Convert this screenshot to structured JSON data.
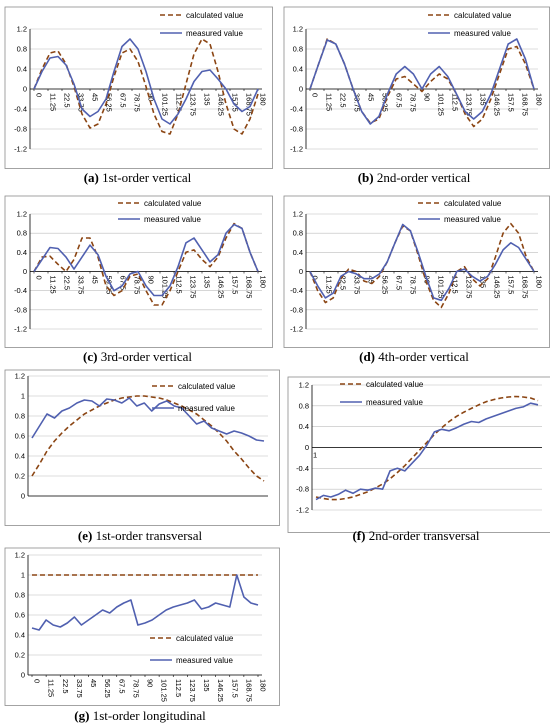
{
  "colors": {
    "calculated": "#8B4513",
    "measured": "#5060B0",
    "axis": "#000000",
    "grid": "#BEBEBE",
    "border": "#8C8C8C"
  },
  "chart_data": [
    {
      "id": "a",
      "type": "line",
      "caption": {
        "label": "(a)",
        "text": "1st-order vertical"
      },
      "legend": {
        "placement": "top-right"
      },
      "yticks": [
        "1.2",
        "0.8",
        "0.4",
        "0",
        "-0.4",
        "-0.8",
        "-1.2"
      ],
      "ylim": [
        -1.2,
        1.2
      ],
      "xticks": [
        "0",
        "11.25",
        "22.5",
        "33.75",
        "45",
        "56.25",
        "67.5",
        "78.75",
        "90",
        "101.25",
        "112.5",
        "123.75",
        "135",
        "146.25",
        "157.5",
        "168.75",
        "180"
      ],
      "xlim": [
        0,
        180
      ],
      "grid": true,
      "series": [
        {
          "name": "calculated value",
          "style": "dashed",
          "y": [
            0,
            0.4,
            0.72,
            0.76,
            0.5,
            0.05,
            -0.5,
            -0.78,
            -0.7,
            -0.3,
            0.25,
            0.72,
            0.8,
            0.55,
            0.05,
            -0.5,
            -0.85,
            -0.9,
            -0.5,
            0.1,
            0.7,
            1.0,
            0.9,
            0.35,
            -0.3,
            -0.8,
            -0.9,
            -0.6,
            -0.1
          ]
        },
        {
          "name": "measured value",
          "style": "solid",
          "y": [
            0,
            0.35,
            0.62,
            0.65,
            0.48,
            0.1,
            -0.4,
            -0.55,
            -0.45,
            -0.2,
            0.35,
            0.85,
            1.0,
            0.8,
            0.35,
            -0.2,
            -0.6,
            -0.7,
            -0.5,
            -0.2,
            0.15,
            0.35,
            0.38,
            0.2,
            0,
            -0.3,
            -0.45,
            -0.35,
            0
          ]
        }
      ]
    },
    {
      "id": "b",
      "type": "line",
      "caption": {
        "label": "(b)",
        "text": "2nd-order vertical"
      },
      "legend": {
        "placement": "top-right"
      },
      "yticks": [
        "1.2",
        "0.8",
        "0.4",
        "0",
        "-0.4",
        "-0.8",
        "-1.2"
      ],
      "ylim": [
        -1.2,
        1.2
      ],
      "xticks": [
        "0",
        "11.25",
        "22.5",
        "33.75",
        "45",
        "56.25",
        "67.5",
        "78.75",
        "90",
        "101.25",
        "112.5",
        "123.75",
        "135",
        "146.25",
        "157.5",
        "168.75",
        "180"
      ],
      "xlim": [
        0,
        180
      ],
      "grid": true,
      "series": [
        {
          "name": "calculated value",
          "style": "dashed",
          "y": [
            0,
            0.5,
            1.0,
            0.9,
            0.5,
            0,
            -0.45,
            -0.68,
            -0.6,
            -0.15,
            0.2,
            0.25,
            0.1,
            -0.05,
            0.15,
            0.3,
            0.2,
            -0.1,
            -0.5,
            -0.75,
            -0.6,
            -0.2,
            0.3,
            0.8,
            0.85,
            0.5,
            0
          ]
        },
        {
          "name": "measured value",
          "style": "solid",
          "y": [
            0,
            0.5,
            0.98,
            0.9,
            0.5,
            0,
            -0.45,
            -0.7,
            -0.55,
            -0.1,
            0.3,
            0.45,
            0.3,
            0,
            0.3,
            0.45,
            0.25,
            -0.1,
            -0.45,
            -0.6,
            -0.45,
            -0.1,
            0.4,
            0.9,
            1.0,
            0.6,
            0
          ]
        }
      ]
    },
    {
      "id": "c",
      "type": "line",
      "caption": {
        "label": "(c)",
        "text": "3rd-order vertical"
      },
      "legend": {
        "placement": "top-right"
      },
      "yticks": [
        "1.2",
        "0.8",
        "0.4",
        "0",
        "-0.4",
        "-0.8",
        "-1.2"
      ],
      "ylim": [
        -1.2,
        1.2
      ],
      "xticks": [
        "0",
        "11.25",
        "22.5",
        "33.75",
        "45",
        "56.25",
        "67.5",
        "78.75",
        "90",
        "101.25",
        "112.5",
        "123.75",
        "135",
        "146.25",
        "157.5",
        "168.75",
        "180"
      ],
      "xlim": [
        0,
        180
      ],
      "grid": true,
      "series": [
        {
          "name": "calculated value",
          "style": "dashed",
          "y": [
            0,
            0.3,
            0.32,
            0.15,
            0,
            0.25,
            0.7,
            0.7,
            0.3,
            -0.3,
            -0.5,
            -0.4,
            -0.1,
            -0.05,
            -0.4,
            -0.7,
            -0.7,
            -0.4,
            0,
            0.4,
            0.45,
            0.25,
            0.1,
            0.3,
            0.7,
            1.0,
            0.9,
            0.4,
            0
          ]
        },
        {
          "name": "measured value",
          "style": "solid",
          "y": [
            0,
            0.25,
            0.5,
            0.48,
            0.3,
            0.05,
            0.3,
            0.55,
            0.35,
            -0.1,
            -0.4,
            -0.3,
            -0.05,
            0,
            -0.3,
            -0.5,
            -0.5,
            -0.3,
            0.1,
            0.6,
            0.7,
            0.45,
            0.2,
            0.35,
            0.8,
            0.98,
            0.9,
            0.4,
            0
          ]
        }
      ]
    },
    {
      "id": "d",
      "type": "line",
      "caption": {
        "label": "(d)",
        "text": "4th-order vertical"
      },
      "legend": {
        "placement": "top-right"
      },
      "yticks": [
        "1.2",
        "0.8",
        "0.4",
        "0",
        "-0.4",
        "-0.8",
        "-1.2"
      ],
      "ylim": [
        -1.2,
        1.2
      ],
      "xticks": [
        "0",
        "11.25",
        "22.5",
        "33.75",
        "45",
        "56.25",
        "67.5",
        "78.75",
        "90",
        "101.25",
        "112.5",
        "123.75",
        "135",
        "146.25",
        "157.5",
        "168.75",
        "180"
      ],
      "xlim": [
        0,
        180
      ],
      "grid": true,
      "series": [
        {
          "name": "calculated value",
          "style": "dashed",
          "y": [
            0,
            -0.4,
            -0.65,
            -0.55,
            -0.15,
            0.05,
            0,
            -0.2,
            -0.25,
            -0.1,
            0.2,
            0.6,
            0.95,
            0.85,
            0.35,
            -0.2,
            -0.6,
            -0.75,
            -0.45,
            0,
            0.1,
            -0.15,
            -0.3,
            -0.15,
            0.3,
            0.8,
            1.0,
            0.8,
            0.3,
            0
          ]
        },
        {
          "name": "measured value",
          "style": "solid",
          "y": [
            0,
            -0.3,
            -0.55,
            -0.45,
            -0.1,
            0,
            -0.05,
            -0.15,
            -0.15,
            -0.05,
            0.2,
            0.6,
            0.98,
            0.85,
            0.4,
            -0.1,
            -0.55,
            -0.6,
            -0.35,
            0,
            0.05,
            -0.1,
            -0.2,
            -0.1,
            0.15,
            0.45,
            0.6,
            0.5,
            0.25,
            0
          ]
        }
      ]
    },
    {
      "id": "e",
      "type": "line",
      "caption": {
        "label": "(e)",
        "text": "1st-order transversal"
      },
      "legend": {
        "placement": "top-right"
      },
      "yticks": [
        "1.2",
        "1",
        "0.8",
        "0.6",
        "0.4",
        "0.2",
        "0"
      ],
      "ylim": [
        0,
        1.2
      ],
      "xticks": [],
      "grid": true,
      "series": [
        {
          "name": "calculated value",
          "style": "dashed",
          "y": [
            0.2,
            0.32,
            0.45,
            0.55,
            0.63,
            0.7,
            0.76,
            0.82,
            0.86,
            0.9,
            0.93,
            0.96,
            0.98,
            0.99,
            1.0,
            1.0,
            0.99,
            0.98,
            0.96,
            0.93,
            0.9,
            0.86,
            0.82,
            0.76,
            0.7,
            0.63,
            0.55,
            0.45,
            0.37,
            0.28,
            0.2,
            0.15
          ]
        },
        {
          "name": "measured value",
          "style": "solid",
          "y": [
            0.58,
            0.7,
            0.82,
            0.78,
            0.85,
            0.88,
            0.93,
            0.96,
            0.95,
            0.9,
            0.97,
            0.96,
            0.93,
            0.98,
            0.9,
            0.93,
            0.85,
            0.92,
            0.95,
            0.9,
            0.88,
            0.8,
            0.72,
            0.75,
            0.68,
            0.65,
            0.62,
            0.65,
            0.63,
            0.6,
            0.56,
            0.55
          ]
        }
      ]
    },
    {
      "id": "f",
      "type": "line",
      "caption": {
        "label": "(f)",
        "text": "2nd-order transversal"
      },
      "legend": {
        "placement": "top-left"
      },
      "yticks": [
        "1.2",
        "0.8",
        "0.4",
        "0",
        "-0.4",
        "-0.8",
        "-1.2"
      ],
      "ylim": [
        -1.2,
        1.2
      ],
      "xticks": [
        "1"
      ],
      "grid": true,
      "series": [
        {
          "name": "calculated value",
          "style": "dashed",
          "y": [
            -0.95,
            -0.98,
            -1.0,
            -1.0,
            -0.98,
            -0.95,
            -0.9,
            -0.85,
            -0.78,
            -0.7,
            -0.6,
            -0.48,
            -0.35,
            -0.2,
            -0.05,
            0.1,
            0.25,
            0.38,
            0.5,
            0.6,
            0.68,
            0.75,
            0.82,
            0.88,
            0.92,
            0.95,
            0.97,
            0.98,
            0.97,
            0.95,
            0.9
          ]
        },
        {
          "name": "measured value",
          "style": "solid",
          "y": [
            -1.0,
            -0.92,
            -0.95,
            -0.9,
            -0.82,
            -0.88,
            -0.8,
            -0.82,
            -0.78,
            -0.8,
            -0.45,
            -0.4,
            -0.45,
            -0.3,
            -0.15,
            0.05,
            0.3,
            0.35,
            0.32,
            0.38,
            0.45,
            0.5,
            0.48,
            0.55,
            0.6,
            0.65,
            0.7,
            0.75,
            0.78,
            0.85,
            0.82
          ]
        }
      ]
    },
    {
      "id": "g",
      "type": "line",
      "caption": {
        "label": "(g)",
        "text": "1st-order longitudinal"
      },
      "legend": {
        "placement": "bottom-center"
      },
      "yticks": [
        "1.2",
        "1",
        "0.8",
        "0.6",
        "0.4",
        "0.2",
        "0"
      ],
      "ylim": [
        0,
        1.2
      ],
      "xticks": [
        "0",
        "11.25",
        "22.5",
        "33.75",
        "45",
        "56.25",
        "67.5",
        "78.75",
        "90",
        "101.25",
        "112.5",
        "123.75",
        "135",
        "146.25",
        "157.5",
        "168.75",
        "180"
      ],
      "xlim": [
        0,
        180
      ],
      "grid": true,
      "series": [
        {
          "name": "calculated value",
          "style": "dashed",
          "y": [
            1,
            1,
            1,
            1,
            1,
            1,
            1,
            1,
            1,
            1,
            1,
            1,
            1,
            1,
            1,
            1,
            1,
            1,
            1,
            1,
            1,
            1,
            1,
            1,
            1,
            1,
            1,
            1,
            1,
            1,
            1,
            1,
            1
          ]
        },
        {
          "name": "measured value",
          "style": "solid",
          "y": [
            0.47,
            0.45,
            0.55,
            0.5,
            0.48,
            0.52,
            0.58,
            0.5,
            0.55,
            0.6,
            0.65,
            0.62,
            0.68,
            0.72,
            0.75,
            0.5,
            0.52,
            0.55,
            0.6,
            0.65,
            0.68,
            0.7,
            0.72,
            0.75,
            0.66,
            0.68,
            0.72,
            0.7,
            0.68,
            1.0,
            0.78,
            0.72,
            0.7
          ]
        }
      ]
    }
  ]
}
